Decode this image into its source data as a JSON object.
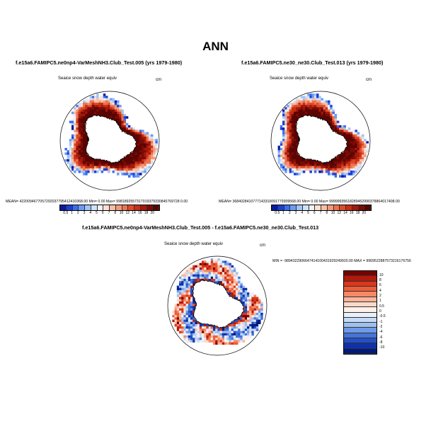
{
  "title": "ANN",
  "panels": [
    {
      "title": "f.e15a6.FAMIPC5.ne0np4-VarMeshNH3.Club_Test.005 (yrs 1979-1980)",
      "variable": "Seaice snow depth water equiv",
      "units": "cm",
      "stats": "MEAN= 4220094677057292037795412410368.00  Min=    0.00  Max= 9981892557317019379330845769728 0.00"
    },
    {
      "title": "f.e15a6.FAMIPC5.ne30_ne30.Club_Test.013 (yrs 1979-1980)",
      "variable": "Seaice snow depth water equiv",
      "units": "cm",
      "stats": "MEAN= 3684028410777143310091779309568.00  Min=    0.00  Max= 99999935618289452990378864017408.00"
    }
  ],
  "diff_panel": {
    "title": "f.e15a6.FAMIPC5.ne0np4-VarMeshNH3.Club_Test.005 - f.e15a6.FAMIPC5.ne30_ne30.Club_Test.013",
    "variable": "Seaice snow depth water equiv",
    "units": "cm",
    "stats": "MIN = -9894322906647414100431929249920.00 MAX = 9969522887573216176756"
  },
  "colorbar_top": {
    "labels": [
      "0.5",
      "1",
      "2",
      "3",
      "4",
      "5",
      "6",
      "7",
      "8",
      "10",
      "12",
      "14",
      "16",
      "18",
      "20"
    ],
    "colors": [
      "#0a1a9e",
      "#1c3fd6",
      "#3a6ef0",
      "#6a9cf5",
      "#a2c4f7",
      "#cfe0f9",
      "#f1f1f3",
      "#fbe0d3",
      "#f8bea4",
      "#f39a78",
      "#ec7452",
      "#df4c2c",
      "#c92e16",
      "#a5180b",
      "#7c0b05",
      "#5a0402"
    ]
  },
  "colorbar_diff": {
    "labels": [
      "10",
      "8",
      "6",
      "4",
      "2",
      "1",
      "0.5",
      "0",
      "-0.5",
      "-1",
      "-2",
      "-4",
      "-6",
      "-8",
      "-10"
    ],
    "colors": [
      "#7a0000",
      "#b21a0c",
      "#d9381e",
      "#ee5c36",
      "#f58966",
      "#f9b49a",
      "#fcd8c8",
      "#fdf0e8",
      "#e8f0fc",
      "#c6daf7",
      "#9ebff0",
      "#6f9ae6",
      "#4573d8",
      "#2450c4",
      "#0f31a8",
      "#001b80"
    ]
  }
}
